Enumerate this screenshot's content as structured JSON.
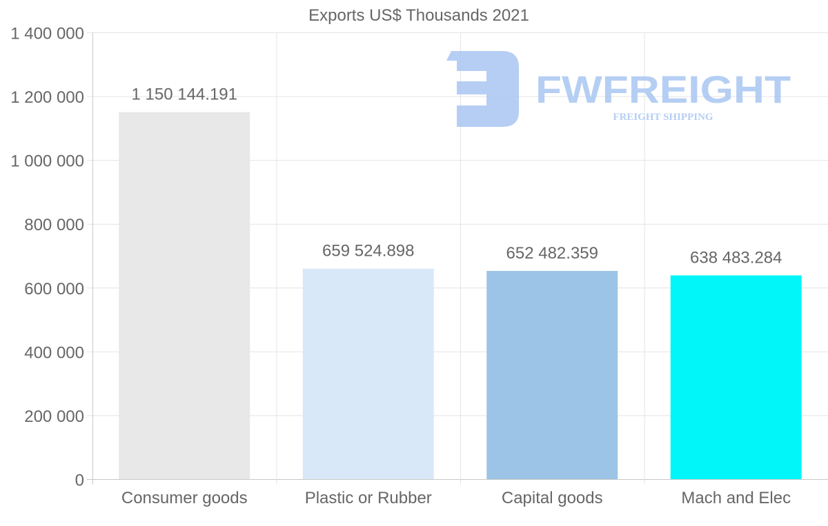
{
  "chart_data": {
    "type": "bar",
    "title": "Exports US$ Thousands 2021",
    "xlabel": "",
    "ylabel": "",
    "categories": [
      "Consumer goods",
      "Plastic or Rubber",
      "Capital goods",
      "Mach and Elec"
    ],
    "values": [
      1150144.191,
      659524.898,
      652482.359,
      638483.284
    ],
    "data_labels": [
      "1 150 144.191",
      "659 524.898",
      "652 482.359",
      "638 483.284"
    ],
    "colors": [
      "#e8e8e8",
      "#d9e8f8",
      "#9cc4e6",
      "#00f6f8"
    ],
    "ylim": [
      0,
      1400000
    ],
    "yticks": [
      0,
      200000,
      400000,
      600000,
      800000,
      1000000,
      1200000,
      1400000
    ],
    "ytick_labels": [
      "0",
      "200 000",
      "400 000",
      "600 000",
      "800 000",
      "1 000 000",
      "1 200 000",
      "1 400 000"
    ],
    "grid": true,
    "legend": "none"
  },
  "watermark": {
    "brand": "FWFREIGHT",
    "tagline": "FREIGHT SHIPPING",
    "color": "#a9c6f2"
  }
}
